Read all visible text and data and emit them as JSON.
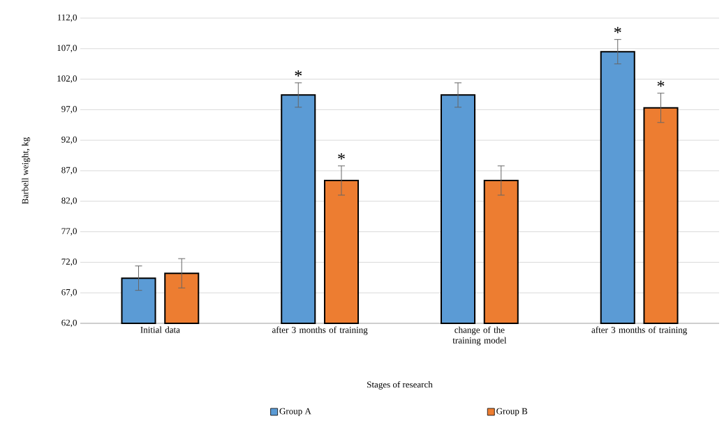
{
  "chart_data": {
    "type": "bar",
    "xlabel": "Stages of research",
    "ylabel": "Barbell weight, kg",
    "categories": [
      "Initial data",
      "after 3 months of training",
      "change of the training model",
      "after 3 months of training"
    ],
    "series": [
      {
        "name": "Group A",
        "color": "#5b9bd5",
        "values": [
          69.4,
          99.4,
          99.4,
          106.5
        ],
        "errors": [
          2.0,
          2.0,
          2.0,
          2.0
        ],
        "value_labels": [
          null,
          "*",
          null,
          "*"
        ]
      },
      {
        "name": "Group B",
        "color": "#ed7d31",
        "values": [
          70.2,
          85.4,
          85.4,
          97.3
        ],
        "errors": [
          2.4,
          2.4,
          2.4,
          2.4
        ],
        "value_labels": [
          null,
          "*",
          null,
          "*"
        ]
      }
    ],
    "ylim": [
      62,
      112
    ],
    "yticks": [
      {
        "value": 62,
        "label": "62,0"
      },
      {
        "value": 67,
        "label": "67,0"
      },
      {
        "value": 72,
        "label": "72,0"
      },
      {
        "value": 77,
        "label": "77,0"
      },
      {
        "value": 82,
        "label": "82,0"
      },
      {
        "value": 87,
        "label": "87,0"
      },
      {
        "value": 92,
        "label": "92,0"
      },
      {
        "value": 97,
        "label": "97,0"
      },
      {
        "value": 102,
        "label": "102,0"
      },
      {
        "value": 107,
        "label": "107,0"
      },
      {
        "value": 112,
        "label": "112,0"
      }
    ],
    "grid": "y",
    "legend": "bottom"
  }
}
